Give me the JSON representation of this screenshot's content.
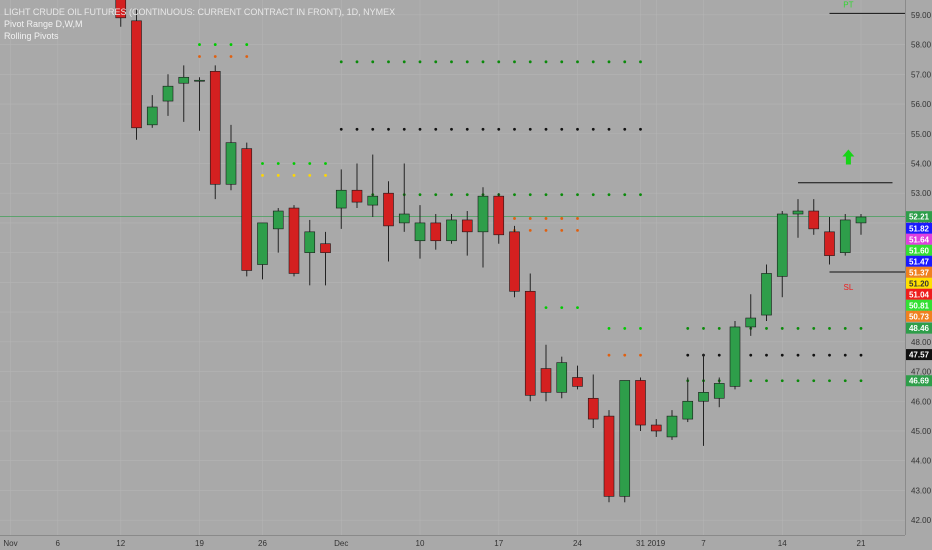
{
  "legend": {
    "title": "LIGHT CRUDE OIL FUTURES (CONTINUOUS: CURRENT CONTRACT IN FRONT), 1D, NYMEX",
    "study1": "Pivot Range D,W,M",
    "study2": "Rolling Pivots"
  },
  "colors": {
    "background": "#a9a9a9",
    "up_candle": "#2e9e4a",
    "down_candle": "#d42020",
    "wick": "#222222"
  },
  "chart_data": {
    "type": "candlestick",
    "ylim": [
      41.5,
      59.5
    ],
    "y_ticks": [
      "42.00",
      "43.00",
      "44.00",
      "45.00",
      "46.00",
      "47.00",
      "48.00",
      "49.00",
      "50.00",
      "51.00",
      "52.00",
      "53.00",
      "54.00",
      "55.00",
      "56.00",
      "57.00",
      "58.00",
      "59.00"
    ],
    "x_ticks": [
      {
        "label": "Nov",
        "i": 0
      },
      {
        "label": "6",
        "i": 3
      },
      {
        "label": "12",
        "i": 7
      },
      {
        "label": "19",
        "i": 12
      },
      {
        "label": "26",
        "i": 16
      },
      {
        "label": "Dec",
        "i": 21
      },
      {
        "label": "10",
        "i": 26
      },
      {
        "label": "17",
        "i": 31
      },
      {
        "label": "24",
        "i": 36
      },
      {
        "label": "31",
        "i": 40
      },
      {
        "label": "2019",
        "i": 41
      },
      {
        "label": "7",
        "i": 44
      },
      {
        "label": "14",
        "i": 49
      },
      {
        "label": "21",
        "i": 54
      }
    ],
    "candles": [
      {
        "i": 7,
        "o": 60.2,
        "h": 60.8,
        "l": 58.6,
        "c": 58.9
      },
      {
        "i": 8,
        "o": 58.8,
        "h": 59.2,
        "l": 54.8,
        "c": 55.2
      },
      {
        "i": 9,
        "o": 55.3,
        "h": 56.3,
        "l": 55.2,
        "c": 55.9
      },
      {
        "i": 10,
        "o": 56.1,
        "h": 57.0,
        "l": 55.6,
        "c": 56.6
      },
      {
        "i": 11,
        "o": 56.7,
        "h": 57.3,
        "l": 55.4,
        "c": 56.9
      },
      {
        "i": 12,
        "o": 56.8,
        "h": 56.9,
        "l": 55.1,
        "c": 56.8
      },
      {
        "i": 13,
        "o": 57.1,
        "h": 57.3,
        "l": 52.8,
        "c": 53.3
      },
      {
        "i": 14,
        "o": 53.3,
        "h": 55.3,
        "l": 53.1,
        "c": 54.7
      },
      {
        "i": 15,
        "o": 54.5,
        "h": 54.7,
        "l": 50.2,
        "c": 50.4
      },
      {
        "i": 16,
        "o": 50.6,
        "h": 52.0,
        "l": 50.1,
        "c": 52.0
      },
      {
        "i": 17,
        "o": 51.8,
        "h": 52.5,
        "l": 51.0,
        "c": 52.4
      },
      {
        "i": 18,
        "o": 52.5,
        "h": 52.6,
        "l": 50.2,
        "c": 50.3
      },
      {
        "i": 19,
        "o": 51.0,
        "h": 52.1,
        "l": 49.9,
        "c": 51.7
      },
      {
        "i": 20,
        "o": 51.3,
        "h": 51.7,
        "l": 49.9,
        "c": 51.0
      },
      {
        "i": 21,
        "o": 52.5,
        "h": 53.8,
        "l": 51.8,
        "c": 53.1
      },
      {
        "i": 22,
        "o": 53.1,
        "h": 54.0,
        "l": 52.5,
        "c": 52.7
      },
      {
        "i": 23,
        "o": 52.6,
        "h": 54.3,
        "l": 52.2,
        "c": 52.9
      },
      {
        "i": 24,
        "o": 53.0,
        "h": 53.4,
        "l": 50.7,
        "c": 51.9
      },
      {
        "i": 25,
        "o": 52.0,
        "h": 54.0,
        "l": 51.7,
        "c": 52.3
      },
      {
        "i": 26,
        "o": 51.4,
        "h": 52.6,
        "l": 50.8,
        "c": 52.0
      },
      {
        "i": 27,
        "o": 52.0,
        "h": 52.3,
        "l": 51.1,
        "c": 51.4
      },
      {
        "i": 28,
        "o": 51.4,
        "h": 52.3,
        "l": 51.3,
        "c": 52.1
      },
      {
        "i": 29,
        "o": 52.1,
        "h": 52.4,
        "l": 50.9,
        "c": 51.7
      },
      {
        "i": 30,
        "o": 51.7,
        "h": 53.2,
        "l": 50.5,
        "c": 52.9
      },
      {
        "i": 31,
        "o": 52.9,
        "h": 53.0,
        "l": 51.3,
        "c": 51.6
      },
      {
        "i": 32,
        "o": 51.7,
        "h": 51.9,
        "l": 49.5,
        "c": 49.7
      },
      {
        "i": 33,
        "o": 49.7,
        "h": 50.3,
        "l": 46.0,
        "c": 46.2
      },
      {
        "i": 34,
        "o": 47.1,
        "h": 47.9,
        "l": 46.0,
        "c": 46.3
      },
      {
        "i": 35,
        "o": 46.3,
        "h": 47.5,
        "l": 46.1,
        "c": 47.3
      },
      {
        "i": 36,
        "o": 46.8,
        "h": 47.2,
        "l": 46.4,
        "c": 46.5
      },
      {
        "i": 37,
        "o": 46.1,
        "h": 46.9,
        "l": 45.1,
        "c": 45.4
      },
      {
        "i": 38,
        "o": 45.5,
        "h": 45.7,
        "l": 42.6,
        "c": 42.8
      },
      {
        "i": 39,
        "o": 42.8,
        "h": 46.7,
        "l": 42.6,
        "c": 46.7
      },
      {
        "i": 40,
        "o": 46.7,
        "h": 46.8,
        "l": 45.0,
        "c": 45.2
      },
      {
        "i": 41,
        "o": 45.2,
        "h": 45.4,
        "l": 44.8,
        "c": 45.0
      },
      {
        "i": 42,
        "o": 44.8,
        "h": 45.7,
        "l": 44.7,
        "c": 45.5
      },
      {
        "i": 43,
        "o": 45.4,
        "h": 46.8,
        "l": 45.3,
        "c": 46.0
      },
      {
        "i": 44,
        "o": 46.0,
        "h": 47.6,
        "l": 44.5,
        "c": 46.3
      },
      {
        "i": 45,
        "o": 46.1,
        "h": 46.8,
        "l": 45.8,
        "c": 46.6
      },
      {
        "i": 46,
        "o": 46.5,
        "h": 48.7,
        "l": 46.4,
        "c": 48.5
      },
      {
        "i": 47,
        "o": 48.5,
        "h": 49.6,
        "l": 48.2,
        "c": 48.8
      },
      {
        "i": 48,
        "o": 48.9,
        "h": 50.6,
        "l": 48.7,
        "c": 50.3
      },
      {
        "i": 49,
        "o": 50.2,
        "h": 52.4,
        "l": 49.5,
        "c": 52.3
      },
      {
        "i": 50,
        "o": 52.3,
        "h": 52.8,
        "l": 51.5,
        "c": 52.4
      },
      {
        "i": 51,
        "o": 52.4,
        "h": 52.8,
        "l": 51.6,
        "c": 51.8
      },
      {
        "i": 52,
        "o": 51.7,
        "h": 52.2,
        "l": 50.6,
        "c": 50.9
      },
      {
        "i": 53,
        "o": 51.0,
        "h": 52.3,
        "l": 50.9,
        "c": 52.1
      },
      {
        "i": 54,
        "o": 52.0,
        "h": 52.3,
        "l": 51.6,
        "c": 52.2
      }
    ],
    "pivot_rows": [
      {
        "i0": 21,
        "i1": 40,
        "y": 57.42,
        "color": "#0a8a0a"
      },
      {
        "i0": 21,
        "i1": 40,
        "y": 55.15,
        "color": "#111111"
      },
      {
        "i0": 21,
        "i1": 40,
        "y": 52.95,
        "color": "#0a8a0a"
      },
      {
        "i0": 31,
        "i1": 36,
        "y": 52.15,
        "color": "#e06010"
      },
      {
        "i0": 31,
        "i1": 36,
        "y": 51.75,
        "color": "#e06010"
      },
      {
        "i0": 33,
        "i1": 36,
        "y": 49.15,
        "color": "#00cc00"
      },
      {
        "i0": 38,
        "i1": 40,
        "y": 48.45,
        "color": "#00cc00"
      },
      {
        "i0": 43,
        "i1": 54,
        "y": 48.45,
        "color": "#0a8a0a"
      },
      {
        "i0": 38,
        "i1": 40,
        "y": 47.55,
        "color": "#e06010"
      },
      {
        "i0": 43,
        "i1": 54,
        "y": 47.55,
        "color": "#111111"
      },
      {
        "i0": 43,
        "i1": 54,
        "y": 46.69,
        "color": "#0a8a0a"
      },
      {
        "i0": 12,
        "i1": 15,
        "y": 58.0,
        "color": "#00cc00"
      },
      {
        "i0": 12,
        "i1": 15,
        "y": 57.6,
        "color": "#e06010"
      },
      {
        "i0": 15,
        "i1": 20,
        "y": 54.0,
        "color": "#00cc00"
      },
      {
        "i0": 15,
        "i1": 20,
        "y": 53.6,
        "color": "#ffd700"
      }
    ],
    "target_lines": [
      {
        "i0": 50,
        "i1": 56,
        "y": 53.35,
        "color": "#111111"
      },
      {
        "i0": 52,
        "i1": 58,
        "y": 50.35,
        "color": "#111111"
      },
      {
        "i0": 52,
        "i1": 58,
        "y": 59.05,
        "color": "#111111"
      }
    ],
    "markers": [
      {
        "label": "PT",
        "i": 53.2,
        "y": 59.25,
        "color": "#2fd82f"
      },
      {
        "label": "SL",
        "i": 53.2,
        "y": 49.75,
        "color": "#ee1d1d"
      }
    ],
    "arrow": {
      "i": 53.2,
      "y": 54.2,
      "color": "#16d416"
    },
    "price_labels": [
      {
        "text": "52.21",
        "y": 52.21,
        "bg": "#2e9e4a",
        "fg": "#ffffff"
      },
      {
        "text": "51.82",
        "y": 51.82,
        "bg": "#1a1aff",
        "fg": "#ffffff"
      },
      {
        "text": "51.64",
        "y": 51.64,
        "bg": "#e040e0",
        "fg": "#ffffff"
      },
      {
        "text": "51.60",
        "y": 51.6,
        "bg": "#33e033",
        "fg": "#ffffff"
      },
      {
        "text": "51.47",
        "y": 51.47,
        "bg": "#1a1aff",
        "fg": "#ffffff"
      },
      {
        "text": "51.37",
        "y": 51.37,
        "bg": "#f08020",
        "fg": "#ffffff"
      },
      {
        "text": "51.20",
        "y": 51.2,
        "bg": "#ffe000",
        "fg": "#333333"
      },
      {
        "text": "51.04",
        "y": 51.04,
        "bg": "#ee1d1d",
        "fg": "#ffffff"
      },
      {
        "text": "50.81",
        "y": 50.81,
        "bg": "#33e033",
        "fg": "#ffffff"
      },
      {
        "text": "50.73",
        "y": 50.73,
        "bg": "#f08020",
        "fg": "#ffffff"
      },
      {
        "text": "48.46",
        "y": 48.46,
        "bg": "#2e9e4a",
        "fg": "#ffffff"
      },
      {
        "text": "47.57",
        "y": 47.57,
        "bg": "#111111",
        "fg": "#ffffff"
      },
      {
        "text": "46.69",
        "y": 46.69,
        "bg": "#2e9e4a",
        "fg": "#ffffff"
      }
    ],
    "current_price": 52.21
  }
}
